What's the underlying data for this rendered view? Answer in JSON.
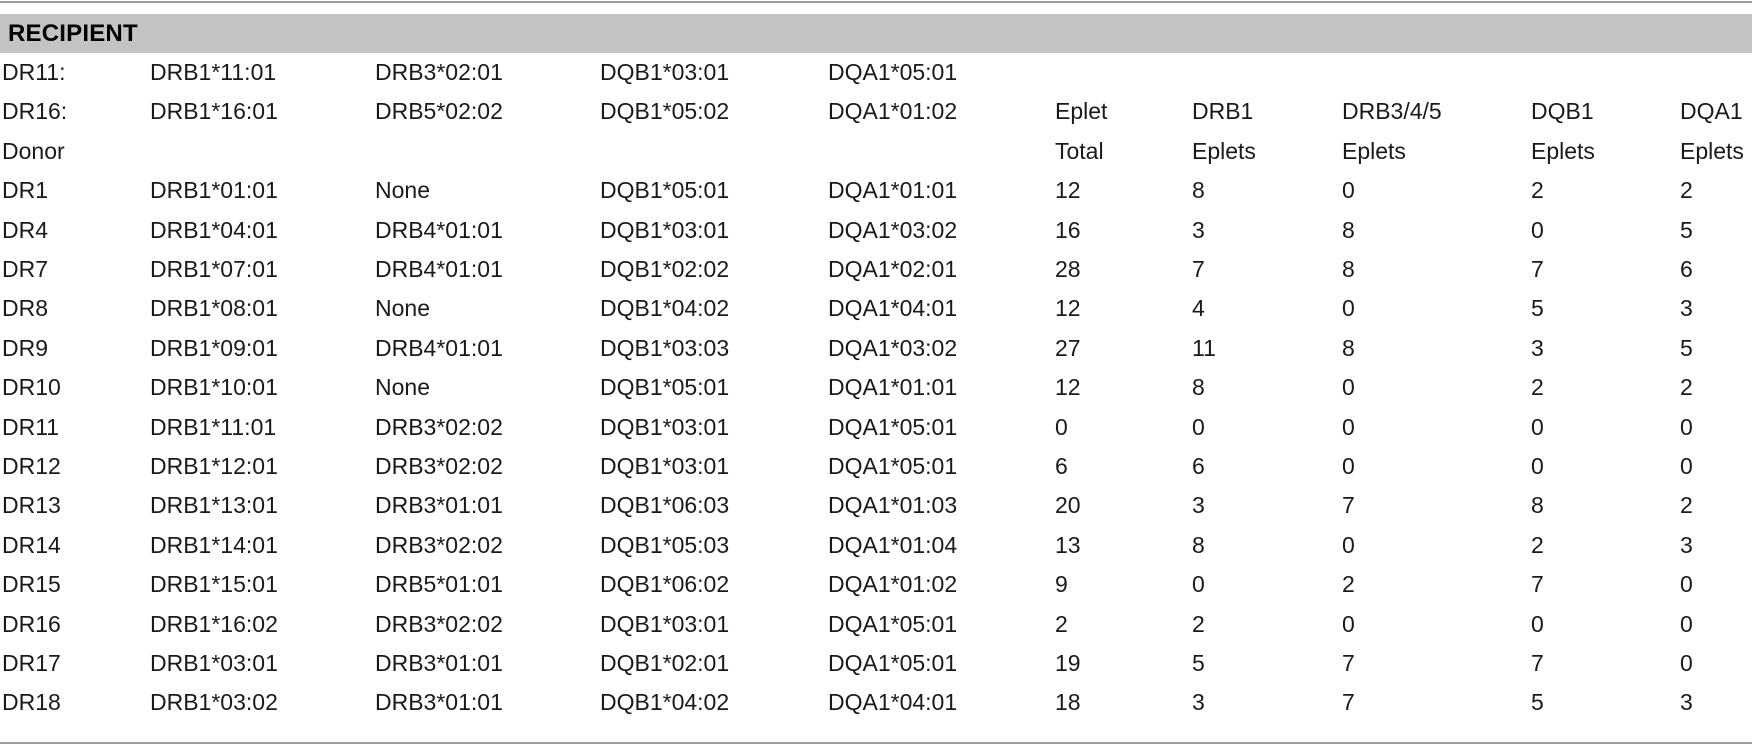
{
  "section_title": "RECIPIENT",
  "recipient_rows": [
    [
      "DR11:",
      "DRB1*11:01",
      "DRB3*02:01",
      "DQB1*03:01",
      "DQA1*05:01",
      "",
      "",
      "",
      "",
      ""
    ],
    [
      "DR16:",
      "DRB1*16:01",
      "DRB5*02:02",
      "DQB1*05:02",
      "DQA1*01:02",
      "Eplet",
      "DRB1",
      "DRB3/4/5",
      "DQB1",
      "DQA1"
    ],
    [
      "Donor",
      "",
      "",
      "",
      "",
      "Total",
      "Eplets",
      "Eplets",
      "Eplets",
      "Eplets"
    ]
  ],
  "donor_rows": [
    [
      "DR1",
      "DRB1*01:01",
      "None",
      "DQB1*05:01",
      "DQA1*01:01",
      "12",
      "8",
      "0",
      "2",
      "2"
    ],
    [
      "DR4",
      "DRB1*04:01",
      "DRB4*01:01",
      "DQB1*03:01",
      "DQA1*03:02",
      "16",
      "3",
      "8",
      "0",
      "5"
    ],
    [
      "DR7",
      "DRB1*07:01",
      "DRB4*01:01",
      "DQB1*02:02",
      "DQA1*02:01",
      "28",
      "7",
      "8",
      "7",
      "6"
    ],
    [
      "DR8",
      "DRB1*08:01",
      "None",
      "DQB1*04:02",
      "DQA1*04:01",
      "12",
      "4",
      "0",
      "5",
      "3"
    ],
    [
      "DR9",
      "DRB1*09:01",
      "DRB4*01:01",
      "DQB1*03:03",
      "DQA1*03:02",
      "27",
      "11",
      "8",
      "3",
      "5"
    ],
    [
      "DR10",
      "DRB1*10:01",
      "None",
      "DQB1*05:01",
      "DQA1*01:01",
      "12",
      "8",
      "0",
      "2",
      "2"
    ],
    [
      "DR11",
      "DRB1*11:01",
      "DRB3*02:02",
      "DQB1*03:01",
      "DQA1*05:01",
      "0",
      "0",
      "0",
      "0",
      "0"
    ],
    [
      "DR12",
      "DRB1*12:01",
      "DRB3*02:02",
      "DQB1*03:01",
      "DQA1*05:01",
      "6",
      "6",
      "0",
      "0",
      "0"
    ],
    [
      "DR13",
      "DRB1*13:01",
      "DRB3*01:01",
      "DQB1*06:03",
      "DQA1*01:03",
      "20",
      "3",
      "7",
      "8",
      "2"
    ],
    [
      "DR14",
      "DRB1*14:01",
      "DRB3*02:02",
      "DQB1*05:03",
      "DQA1*01:04",
      "13",
      "8",
      "0",
      "2",
      "3"
    ],
    [
      "DR15",
      "DRB1*15:01",
      "DRB5*01:01",
      "DQB1*06:02",
      "DQA1*01:02",
      "9",
      "0",
      "2",
      "7",
      "0"
    ],
    [
      "DR16",
      "DRB1*16:02",
      "DRB3*02:02",
      "DQB1*03:01",
      "DQA1*05:01",
      "2",
      "2",
      "0",
      "0",
      "0"
    ],
    [
      "DR17",
      "DRB1*03:01",
      "DRB3*01:01",
      "DQB1*02:01",
      "DQA1*05:01",
      "19",
      "5",
      "7",
      "7",
      "0"
    ],
    [
      "DR18",
      "DRB1*03:02",
      "DRB3*01:01",
      "DQB1*04:02",
      "DQA1*04:01",
      "18",
      "3",
      "7",
      "5",
      "3"
    ]
  ]
}
